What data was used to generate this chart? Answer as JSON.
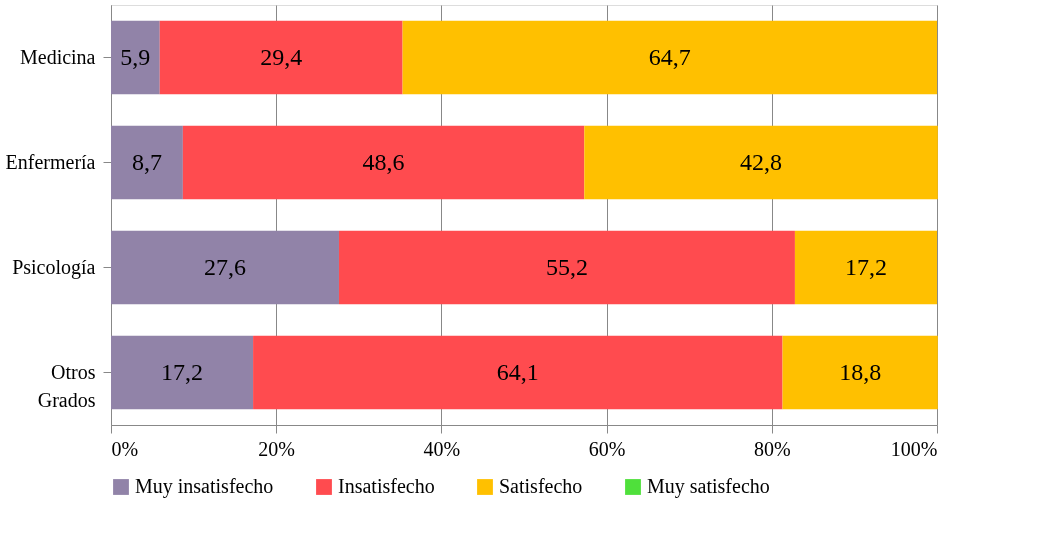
{
  "chart_data": {
    "type": "bar",
    "orientation": "horizontal",
    "stacked": true,
    "categories": [
      "Medicina",
      "Enfermería",
      "Psicología",
      "Otros\nGrados"
    ],
    "series": [
      {
        "name": "Muy insatisfecho",
        "color": "#9183a8",
        "values": [
          5.9,
          8.7,
          27.6,
          17.2
        ],
        "value_labels": [
          "5,9",
          "8,7",
          "27,6",
          "17,2"
        ]
      },
      {
        "name": "Insatisfecho",
        "color": "#ff4b4f",
        "values": [
          29.4,
          48.6,
          55.2,
          64.1
        ],
        "value_labels": [
          "29,4",
          "48,6",
          "55,2",
          "64,1"
        ]
      },
      {
        "name": "Satisfecho",
        "color": "#ffc000",
        "values": [
          64.7,
          42.8,
          17.2,
          18.8
        ],
        "value_labels": [
          "64,7",
          "42,8",
          "17,2",
          "18,8"
        ]
      },
      {
        "name": "Muy satisfecho",
        "color": "#4fe03b",
        "values": [
          0,
          0,
          0,
          0
        ],
        "value_labels": [
          null,
          null,
          null,
          null
        ]
      }
    ],
    "xlim": [
      0,
      100
    ],
    "xticks": [
      {
        "value": 0,
        "label": "0%"
      },
      {
        "value": 20,
        "label": "20%"
      },
      {
        "value": 40,
        "label": "40%"
      },
      {
        "value": 60,
        "label": "60%"
      },
      {
        "value": 80,
        "label": "80%"
      },
      {
        "value": 100,
        "label": "100%"
      }
    ],
    "grid": "x",
    "legend": "bottom"
  }
}
